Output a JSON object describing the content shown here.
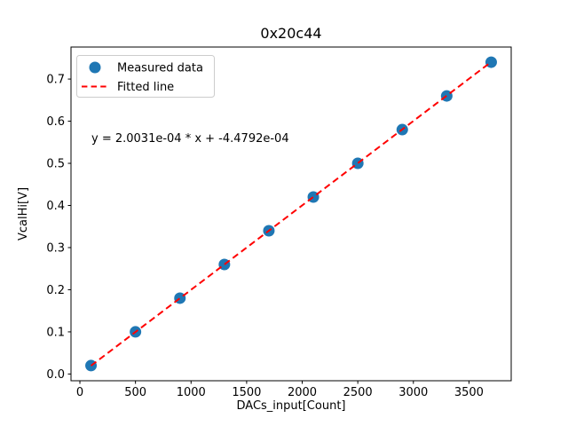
{
  "chart_data": {
    "type": "scatter",
    "title": "0x20c44",
    "xlabel": "DACs_input[Count]",
    "ylabel": "VcalHi[V]",
    "x": [
      100,
      500,
      900,
      1300,
      1700,
      2100,
      2500,
      2900,
      3300,
      3700
    ],
    "y": [
      0.02,
      0.1,
      0.18,
      0.26,
      0.34,
      0.42,
      0.5,
      0.58,
      0.66,
      0.74
    ],
    "series": [
      {
        "name": "Measured data",
        "type": "scatter",
        "color": "#1f77b4"
      },
      {
        "name": "Fitted line",
        "type": "line",
        "style": "dashed",
        "color": "#ff0000"
      }
    ],
    "fit": {
      "slope": 0.00020031,
      "intercept": -0.00044792
    },
    "annotation": "y = 2.0031e-04 * x + -4.4792e-04",
    "legend": {
      "position": "upper left",
      "entries": [
        "Measured data",
        "Fitted line"
      ]
    },
    "xticks": [
      0,
      500,
      1000,
      1500,
      2000,
      2500,
      3000,
      3500
    ],
    "yticks": [
      0.0,
      0.1,
      0.2,
      0.3,
      0.4,
      0.5,
      0.6,
      0.7
    ],
    "xlim": [
      -80,
      3880
    ],
    "ylim": [
      -0.016,
      0.776
    ],
    "grid": false,
    "marker_color": "#1f77b4",
    "line_color": "#ff0000",
    "background": "#ffffff"
  }
}
